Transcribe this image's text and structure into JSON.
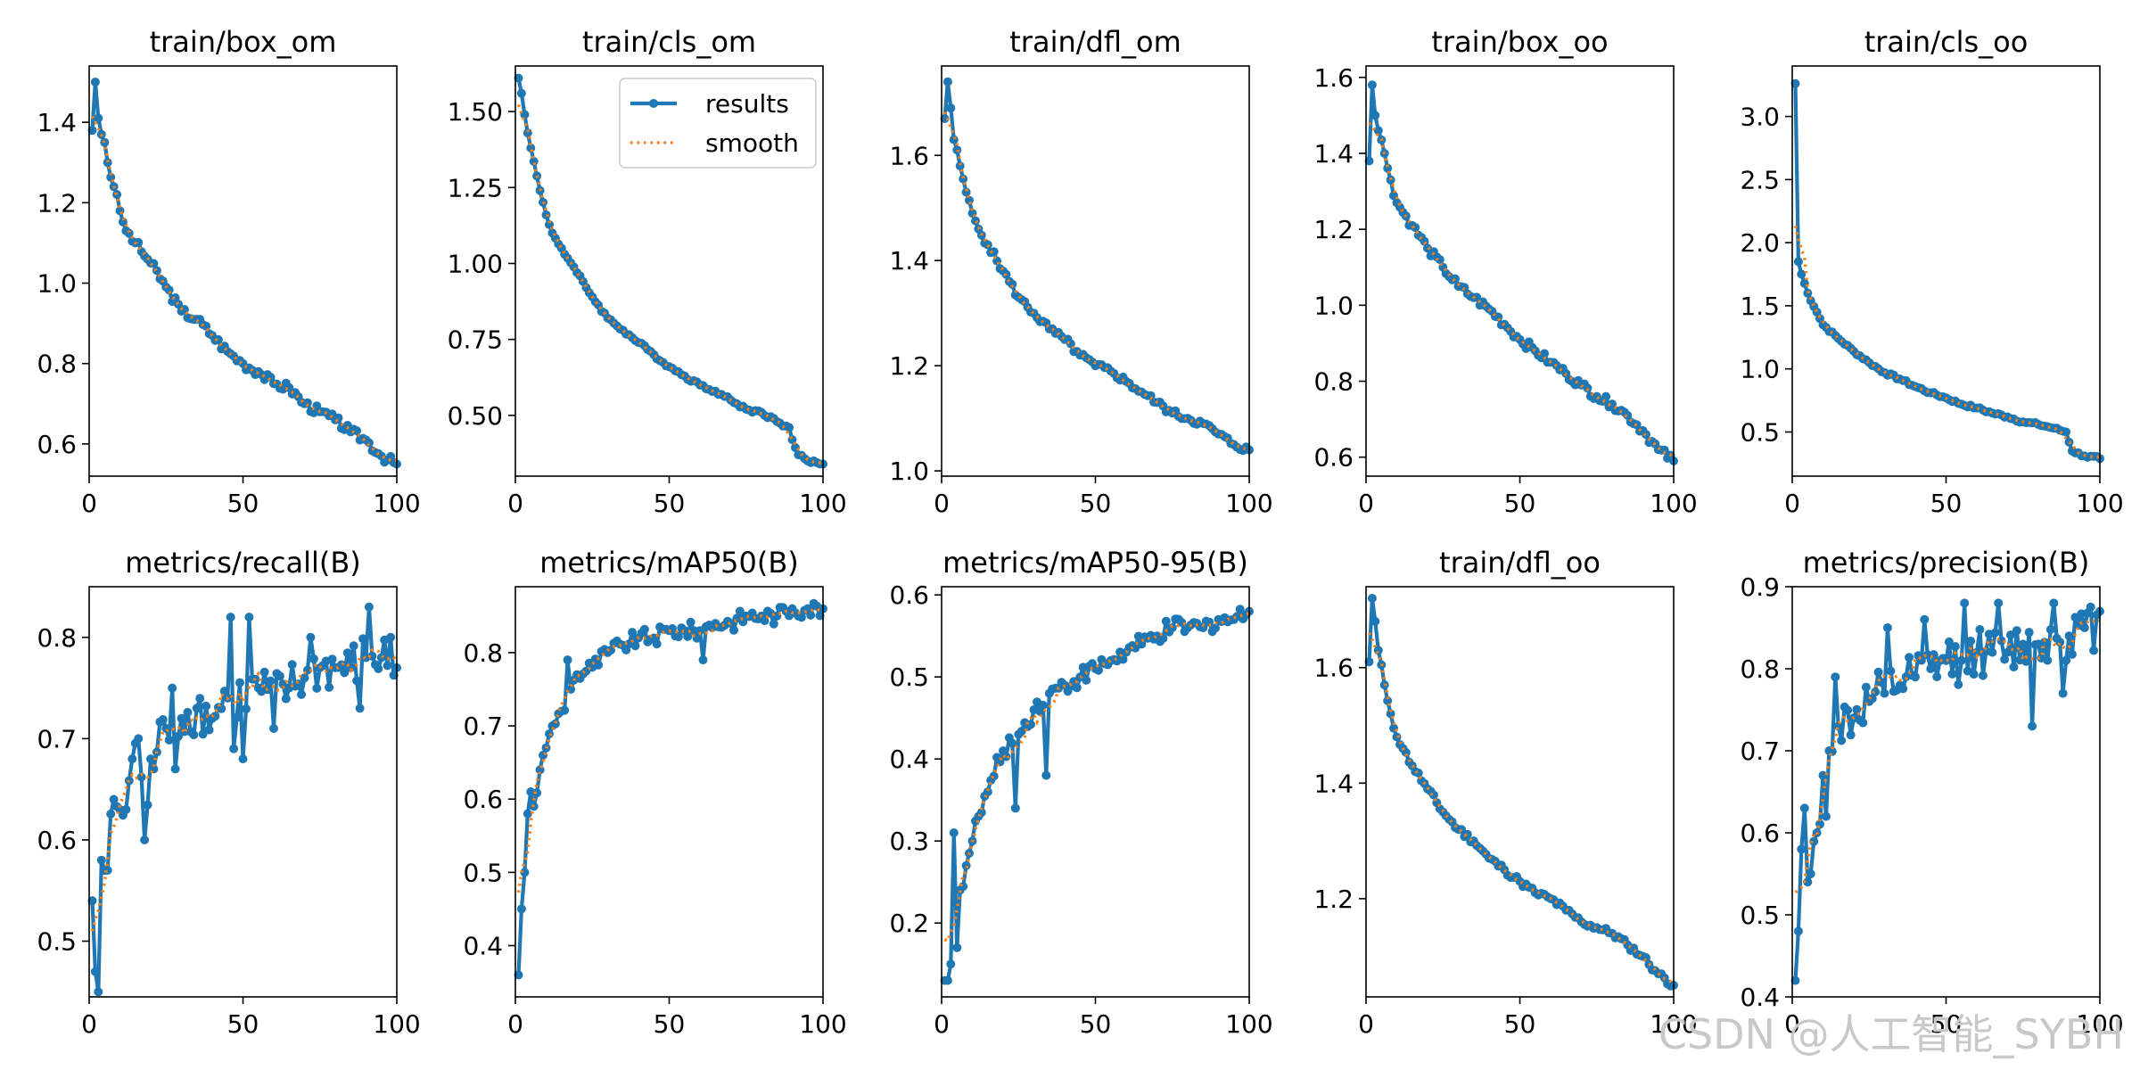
{
  "watermark": "CSDN @人工智能_SYBH",
  "legend": {
    "results": "results",
    "smooth": "smooth"
  },
  "colors": {
    "results": "#1f77b4",
    "smooth": "#ff7f0e",
    "axis": "#000000",
    "background": "#ffffff"
  },
  "chart_data": [
    {
      "type": "line",
      "title": "train/box_om",
      "xlim": [
        0,
        100
      ],
      "ylim": [
        0.52,
        1.54
      ],
      "xticks": [
        0,
        50,
        100
      ],
      "yticks": [
        0.6,
        0.8,
        1.0,
        1.2,
        1.4
      ],
      "ytick_labels": [
        "0.6",
        "0.8",
        "1.0",
        "1.2",
        "1.4"
      ],
      "key": [
        [
          1,
          1.38
        ],
        [
          2,
          1.5
        ],
        [
          3,
          1.41
        ],
        [
          4,
          1.37
        ],
        [
          5,
          1.35
        ],
        [
          6,
          1.3
        ],
        [
          8,
          1.24
        ],
        [
          10,
          1.18
        ],
        [
          12,
          1.13
        ],
        [
          15,
          1.1
        ],
        [
          20,
          1.05
        ],
        [
          25,
          0.99
        ],
        [
          30,
          0.93
        ],
        [
          35,
          0.91
        ],
        [
          40,
          0.87
        ],
        [
          45,
          0.83
        ],
        [
          50,
          0.8
        ],
        [
          55,
          0.78
        ],
        [
          60,
          0.75
        ],
        [
          65,
          0.74
        ],
        [
          70,
          0.7
        ],
        [
          75,
          0.68
        ],
        [
          80,
          0.66
        ],
        [
          85,
          0.63
        ],
        [
          90,
          0.61
        ],
        [
          95,
          0.57
        ],
        [
          100,
          0.55
        ]
      ],
      "noise": 0.012
    },
    {
      "type": "line",
      "title": "train/cls_om",
      "legend": true,
      "xlim": [
        0,
        100
      ],
      "ylim": [
        0.3,
        1.65
      ],
      "xticks": [
        0,
        50,
        100
      ],
      "yticks": [
        0.5,
        0.75,
        1.0,
        1.25,
        1.5
      ],
      "ytick_labels": [
        "0.50",
        "0.75",
        "1.00",
        "1.25",
        "1.50"
      ],
      "key": [
        [
          1,
          1.61
        ],
        [
          2,
          1.56
        ],
        [
          3,
          1.49
        ],
        [
          5,
          1.38
        ],
        [
          8,
          1.24
        ],
        [
          10,
          1.16
        ],
        [
          12,
          1.1
        ],
        [
          15,
          1.05
        ],
        [
          20,
          0.97
        ],
        [
          25,
          0.89
        ],
        [
          30,
          0.82
        ],
        [
          35,
          0.78
        ],
        [
          40,
          0.74
        ],
        [
          45,
          0.7
        ],
        [
          50,
          0.66
        ],
        [
          55,
          0.63
        ],
        [
          60,
          0.6
        ],
        [
          65,
          0.58
        ],
        [
          70,
          0.55
        ],
        [
          75,
          0.52
        ],
        [
          80,
          0.51
        ],
        [
          85,
          0.48
        ],
        [
          89,
          0.46
        ],
        [
          90,
          0.42
        ],
        [
          92,
          0.37
        ],
        [
          95,
          0.35
        ],
        [
          100,
          0.34
        ]
      ],
      "noise": 0.006
    },
    {
      "type": "line",
      "title": "train/dfl_om",
      "xlim": [
        0,
        100
      ],
      "ylim": [
        0.99,
        1.77
      ],
      "xticks": [
        0,
        50,
        100
      ],
      "yticks": [
        1.0,
        1.2,
        1.4,
        1.6
      ],
      "ytick_labels": [
        "1.0",
        "1.2",
        "1.4",
        "1.6"
      ],
      "key": [
        [
          1,
          1.67
        ],
        [
          2,
          1.74
        ],
        [
          3,
          1.69
        ],
        [
          4,
          1.63
        ],
        [
          6,
          1.58
        ],
        [
          8,
          1.53
        ],
        [
          10,
          1.49
        ],
        [
          12,
          1.46
        ],
        [
          15,
          1.43
        ],
        [
          20,
          1.38
        ],
        [
          25,
          1.33
        ],
        [
          30,
          1.3
        ],
        [
          35,
          1.27
        ],
        [
          40,
          1.25
        ],
        [
          45,
          1.22
        ],
        [
          50,
          1.2
        ],
        [
          55,
          1.19
        ],
        [
          60,
          1.17
        ],
        [
          65,
          1.15
        ],
        [
          70,
          1.13
        ],
        [
          75,
          1.11
        ],
        [
          80,
          1.1
        ],
        [
          85,
          1.09
        ],
        [
          90,
          1.07
        ],
        [
          95,
          1.05
        ],
        [
          100,
          1.04
        ]
      ],
      "noise": 0.007
    },
    {
      "type": "line",
      "title": "train/box_oo",
      "xlim": [
        0,
        100
      ],
      "ylim": [
        0.55,
        1.63
      ],
      "xticks": [
        0,
        50,
        100
      ],
      "yticks": [
        0.6,
        0.8,
        1.0,
        1.2,
        1.4,
        1.6
      ],
      "ytick_labels": [
        "0.6",
        "0.8",
        "1.0",
        "1.2",
        "1.4",
        "1.6"
      ],
      "key": [
        [
          1,
          1.38
        ],
        [
          2,
          1.58
        ],
        [
          3,
          1.5
        ],
        [
          4,
          1.46
        ],
        [
          6,
          1.4
        ],
        [
          8,
          1.33
        ],
        [
          10,
          1.27
        ],
        [
          15,
          1.21
        ],
        [
          20,
          1.15
        ],
        [
          25,
          1.1
        ],
        [
          30,
          1.05
        ],
        [
          35,
          1.02
        ],
        [
          40,
          0.99
        ],
        [
          45,
          0.95
        ],
        [
          50,
          0.91
        ],
        [
          55,
          0.88
        ],
        [
          60,
          0.85
        ],
        [
          65,
          0.82
        ],
        [
          70,
          0.79
        ],
        [
          75,
          0.76
        ],
        [
          80,
          0.74
        ],
        [
          85,
          0.71
        ],
        [
          90,
          0.67
        ],
        [
          95,
          0.62
        ],
        [
          100,
          0.59
        ]
      ],
      "noise": 0.012
    },
    {
      "type": "line",
      "title": "train/cls_oo",
      "xlim": [
        0,
        100
      ],
      "ylim": [
        0.15,
        3.4
      ],
      "xticks": [
        0,
        50,
        100
      ],
      "yticks": [
        0.5,
        1.0,
        1.5,
        2.0,
        2.5,
        3.0
      ],
      "ytick_labels": [
        "0.5",
        "1.0",
        "1.5",
        "2.0",
        "2.5",
        "3.0"
      ],
      "key": [
        [
          1,
          3.26
        ],
        [
          2,
          1.85
        ],
        [
          3,
          1.75
        ],
        [
          5,
          1.6
        ],
        [
          8,
          1.45
        ],
        [
          10,
          1.35
        ],
        [
          15,
          1.24
        ],
        [
          20,
          1.14
        ],
        [
          25,
          1.05
        ],
        [
          30,
          0.97
        ],
        [
          35,
          0.92
        ],
        [
          40,
          0.86
        ],
        [
          45,
          0.81
        ],
        [
          50,
          0.77
        ],
        [
          55,
          0.72
        ],
        [
          60,
          0.69
        ],
        [
          65,
          0.65
        ],
        [
          70,
          0.62
        ],
        [
          75,
          0.58
        ],
        [
          80,
          0.56
        ],
        [
          85,
          0.53
        ],
        [
          89,
          0.5
        ],
        [
          91,
          0.35
        ],
        [
          95,
          0.31
        ],
        [
          100,
          0.29
        ]
      ],
      "noise": 0.012
    },
    {
      "type": "line",
      "title": "metrics/recall(B)",
      "xlim": [
        0,
        100
      ],
      "ylim": [
        0.445,
        0.85
      ],
      "xticks": [
        0,
        50,
        100
      ],
      "yticks": [
        0.5,
        0.6,
        0.7,
        0.8
      ],
      "ytick_labels": [
        "0.5",
        "0.6",
        "0.7",
        "0.8"
      ],
      "key": [
        [
          1,
          0.54
        ],
        [
          2,
          0.47
        ],
        [
          3,
          0.45
        ],
        [
          4,
          0.58
        ],
        [
          6,
          0.57
        ],
        [
          8,
          0.64
        ],
        [
          10,
          0.63
        ],
        [
          12,
          0.63
        ],
        [
          14,
          0.68
        ],
        [
          16,
          0.7
        ],
        [
          18,
          0.6
        ],
        [
          20,
          0.68
        ],
        [
          25,
          0.71
        ],
        [
          30,
          0.72
        ],
        [
          35,
          0.73
        ],
        [
          40,
          0.72
        ],
        [
          45,
          0.74
        ],
        [
          50,
          0.74
        ],
        [
          55,
          0.75
        ],
        [
          60,
          0.74
        ],
        [
          65,
          0.75
        ],
        [
          70,
          0.76
        ],
        [
          75,
          0.77
        ],
        [
          80,
          0.77
        ],
        [
          85,
          0.77
        ],
        [
          90,
          0.78
        ],
        [
          95,
          0.78
        ],
        [
          100,
          0.77
        ]
      ],
      "noise": 0.025,
      "spikes": [
        [
          21,
          0.67
        ],
        [
          27,
          0.75
        ],
        [
          28,
          0.67
        ],
        [
          46,
          0.82
        ],
        [
          47,
          0.69
        ],
        [
          50,
          0.68
        ],
        [
          52,
          0.82
        ],
        [
          60,
          0.71
        ],
        [
          72,
          0.8
        ],
        [
          88,
          0.73
        ],
        [
          91,
          0.83
        ],
        [
          98,
          0.8
        ]
      ]
    },
    {
      "type": "line",
      "title": "metrics/mAP50(B)",
      "xlim": [
        0,
        100
      ],
      "ylim": [
        0.33,
        0.89
      ],
      "xticks": [
        0,
        50,
        100
      ],
      "yticks": [
        0.4,
        0.5,
        0.6,
        0.7,
        0.8
      ],
      "ytick_labels": [
        "0.4",
        "0.5",
        "0.6",
        "0.7",
        "0.8"
      ],
      "key": [
        [
          1,
          0.36
        ],
        [
          2,
          0.45
        ],
        [
          3,
          0.5
        ],
        [
          4,
          0.58
        ],
        [
          6,
          0.59
        ],
        [
          8,
          0.64
        ],
        [
          10,
          0.67
        ],
        [
          12,
          0.7
        ],
        [
          15,
          0.72
        ],
        [
          18,
          0.75
        ],
        [
          20,
          0.77
        ],
        [
          25,
          0.78
        ],
        [
          30,
          0.8
        ],
        [
          35,
          0.81
        ],
        [
          40,
          0.82
        ],
        [
          45,
          0.82
        ],
        [
          50,
          0.83
        ],
        [
          55,
          0.83
        ],
        [
          60,
          0.83
        ],
        [
          65,
          0.84
        ],
        [
          70,
          0.84
        ],
        [
          75,
          0.85
        ],
        [
          80,
          0.85
        ],
        [
          85,
          0.85
        ],
        [
          90,
          0.86
        ],
        [
          95,
          0.86
        ],
        [
          100,
          0.86
        ]
      ],
      "noise": 0.012,
      "spikes": [
        [
          5,
          0.61
        ],
        [
          17,
          0.79
        ],
        [
          61,
          0.79
        ]
      ]
    },
    {
      "type": "line",
      "title": "metrics/mAP50-95(B)",
      "xlim": [
        0,
        100
      ],
      "ylim": [
        0.11,
        0.61
      ],
      "xticks": [
        0,
        50,
        100
      ],
      "yticks": [
        0.2,
        0.3,
        0.4,
        0.5,
        0.6
      ],
      "ytick_labels": [
        "0.2",
        "0.3",
        "0.4",
        "0.5",
        "0.6"
      ],
      "key": [
        [
          1,
          0.13
        ],
        [
          2,
          0.13
        ],
        [
          3,
          0.15
        ],
        [
          4,
          0.31
        ],
        [
          5,
          0.17
        ],
        [
          6,
          0.24
        ],
        [
          8,
          0.27
        ],
        [
          10,
          0.3
        ],
        [
          12,
          0.33
        ],
        [
          15,
          0.36
        ],
        [
          20,
          0.41
        ],
        [
          25,
          0.43
        ],
        [
          30,
          0.46
        ],
        [
          35,
          0.48
        ],
        [
          40,
          0.49
        ],
        [
          45,
          0.5
        ],
        [
          50,
          0.51
        ],
        [
          55,
          0.52
        ],
        [
          60,
          0.53
        ],
        [
          65,
          0.54
        ],
        [
          70,
          0.55
        ],
        [
          75,
          0.56
        ],
        [
          80,
          0.56
        ],
        [
          85,
          0.56
        ],
        [
          90,
          0.57
        ],
        [
          95,
          0.57
        ],
        [
          100,
          0.58
        ]
      ],
      "noise": 0.012,
      "spikes": [
        [
          24,
          0.34
        ],
        [
          34,
          0.38
        ]
      ]
    },
    {
      "type": "line",
      "title": "train/dfl_oo",
      "xlim": [
        0,
        100
      ],
      "ylim": [
        1.03,
        1.74
      ],
      "xticks": [
        0,
        50,
        100
      ],
      "yticks": [
        1.2,
        1.4,
        1.6
      ],
      "ytick_labels": [
        "1.2",
        "1.4",
        "1.6"
      ],
      "key": [
        [
          1,
          1.61
        ],
        [
          2,
          1.72
        ],
        [
          3,
          1.68
        ],
        [
          4,
          1.63
        ],
        [
          6,
          1.57
        ],
        [
          8,
          1.52
        ],
        [
          10,
          1.48
        ],
        [
          12,
          1.46
        ],
        [
          15,
          1.43
        ],
        [
          20,
          1.39
        ],
        [
          25,
          1.35
        ],
        [
          30,
          1.32
        ],
        [
          35,
          1.3
        ],
        [
          40,
          1.27
        ],
        [
          45,
          1.25
        ],
        [
          50,
          1.23
        ],
        [
          55,
          1.21
        ],
        [
          60,
          1.2
        ],
        [
          65,
          1.18
        ],
        [
          70,
          1.16
        ],
        [
          75,
          1.15
        ],
        [
          80,
          1.14
        ],
        [
          85,
          1.12
        ],
        [
          90,
          1.1
        ],
        [
          95,
          1.07
        ],
        [
          100,
          1.05
        ]
      ],
      "noise": 0.006
    },
    {
      "type": "line",
      "title": "metrics/precision(B)",
      "xlim": [
        0,
        100
      ],
      "ylim": [
        0.4,
        0.9
      ],
      "xticks": [
        0,
        50,
        100
      ],
      "yticks": [
        0.4,
        0.5,
        0.6,
        0.7,
        0.8,
        0.9
      ],
      "ytick_labels": [
        "0.4",
        "0.5",
        "0.6",
        "0.7",
        "0.8",
        "0.9"
      ],
      "key": [
        [
          1,
          0.42
        ],
        [
          2,
          0.48
        ],
        [
          3,
          0.58
        ],
        [
          4,
          0.63
        ],
        [
          5,
          0.54
        ],
        [
          6,
          0.55
        ],
        [
          8,
          0.6
        ],
        [
          10,
          0.67
        ],
        [
          12,
          0.7
        ],
        [
          15,
          0.73
        ],
        [
          20,
          0.74
        ],
        [
          25,
          0.76
        ],
        [
          30,
          0.77
        ],
        [
          35,
          0.78
        ],
        [
          40,
          0.79
        ],
        [
          45,
          0.8
        ],
        [
          50,
          0.81
        ],
        [
          55,
          0.81
        ],
        [
          60,
          0.82
        ],
        [
          65,
          0.82
        ],
        [
          70,
          0.82
        ],
        [
          75,
          0.83
        ],
        [
          80,
          0.83
        ],
        [
          85,
          0.84
        ],
        [
          90,
          0.84
        ],
        [
          95,
          0.85
        ],
        [
          100,
          0.85
        ]
      ],
      "noise": 0.03,
      "spikes": [
        [
          11,
          0.62
        ],
        [
          14,
          0.79
        ],
        [
          31,
          0.85
        ],
        [
          43,
          0.86
        ],
        [
          56,
          0.88
        ],
        [
          67,
          0.88
        ],
        [
          78,
          0.73
        ],
        [
          85,
          0.88
        ],
        [
          88,
          0.77
        ],
        [
          100,
          0.87
        ]
      ]
    }
  ]
}
